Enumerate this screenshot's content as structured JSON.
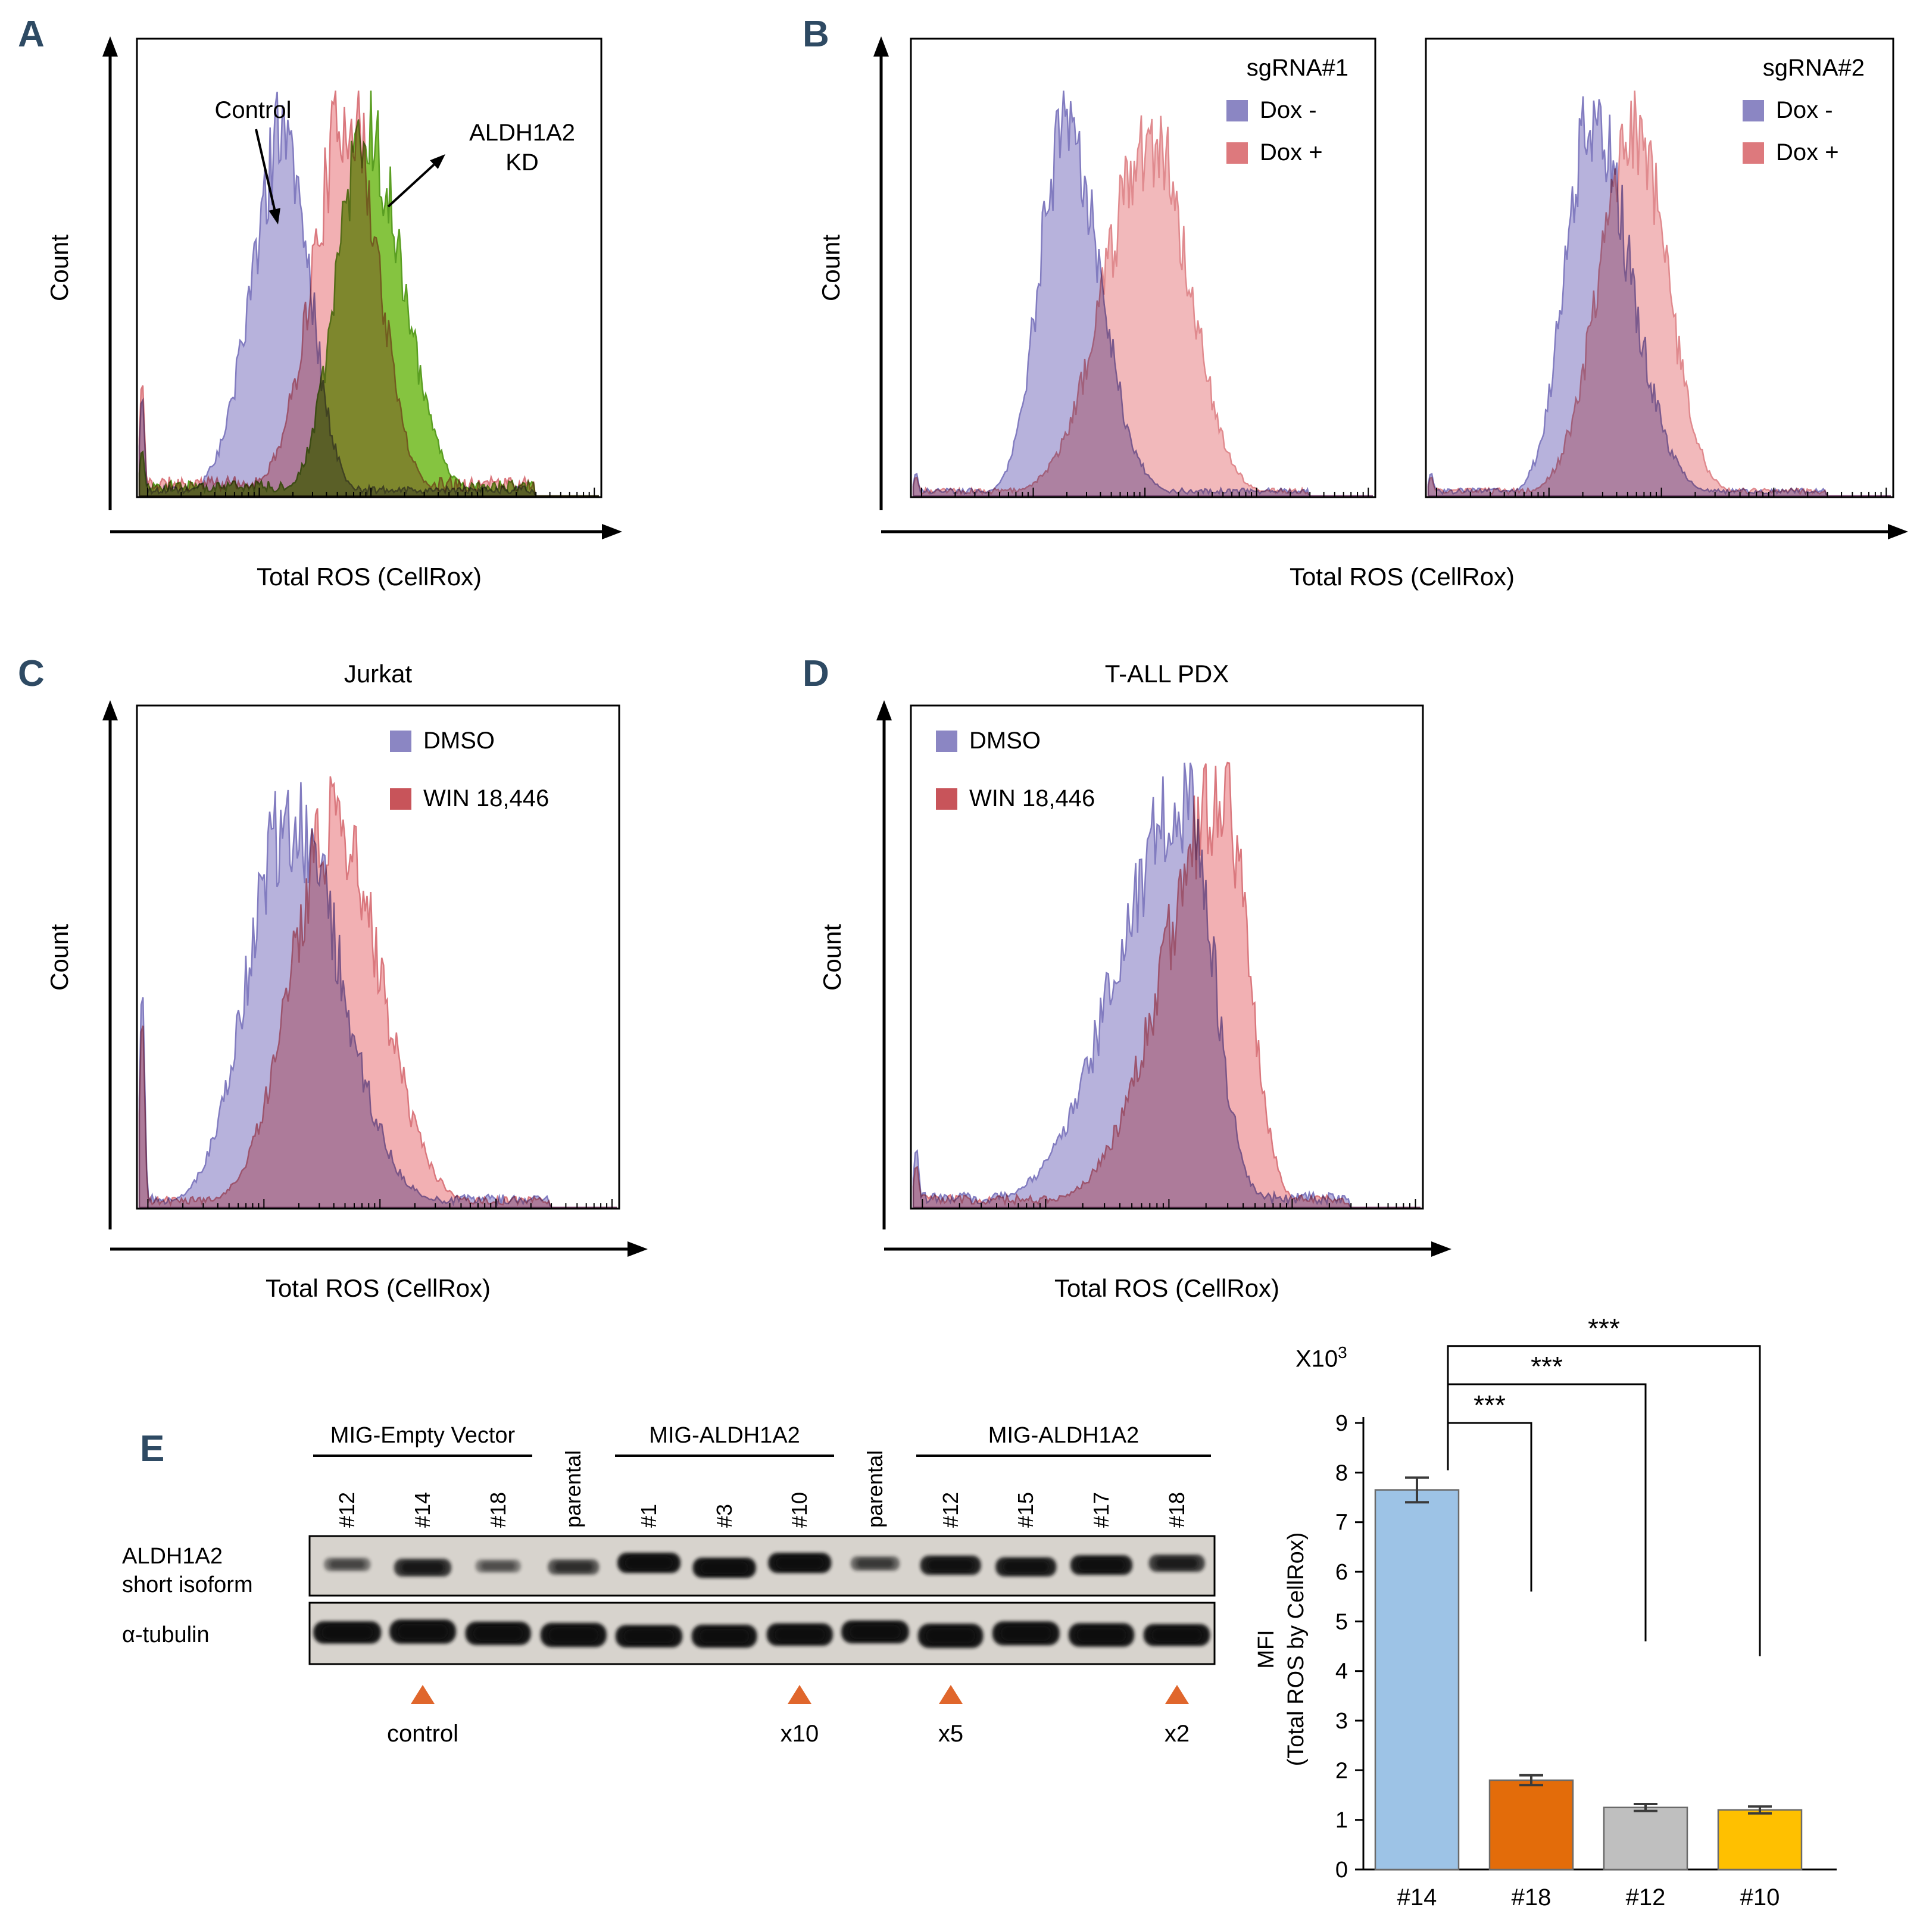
{
  "panels": {
    "A": {
      "letter": "A"
    },
    "B": {
      "letter": "B"
    },
    "C": {
      "letter": "C"
    },
    "D": {
      "letter": "D"
    },
    "E": {
      "letter": "E"
    }
  },
  "letter_color": "#2e4a63",
  "chart_data": [
    {
      "id": "A",
      "type": "area",
      "xlabel": "Total ROS (CellRox)",
      "ylabel": "Count",
      "annotations": [
        {
          "text": "Control"
        },
        {
          "text": "ALDH1A2\nKD"
        }
      ],
      "series": [
        {
          "name": "Control",
          "color": "#b7b2dc",
          "stroke": "#827cc0",
          "peak": 0.315,
          "sigma_left": 0.07,
          "sigma_right": 0.055,
          "height": 0.93,
          "seed": 5,
          "edge_spike": 0.26,
          "floor": 0.025
        },
        {
          "name": "ALDH1A2 KD (CellRox red)",
          "color": "#f2b0b3",
          "stroke": "#da787e",
          "peak": 0.455,
          "sigma_left": 0.075,
          "sigma_right": 0.065,
          "height": 0.99,
          "seed": 11,
          "edge_spike": 0.3,
          "floor": 0.05
        },
        {
          "name": "ALDH1A2 KD (green)",
          "color": "#85c440",
          "stroke": "#5a9e22",
          "peak": 0.49,
          "sigma_left": 0.06,
          "sigma_right": 0.08,
          "height": 0.95,
          "seed": 17,
          "edge_spike": 0.12,
          "floor": 0.04
        }
      ]
    },
    {
      "id": "B-sgRNA1",
      "type": "area",
      "xlabel": "Total ROS (CellRox)",
      "ylabel": "Count",
      "legend_title": "sgRNA#1",
      "legend": [
        {
          "label": "Dox -",
          "color": "#8b86c3"
        },
        {
          "label": "Dox +",
          "color": "#dd797d"
        }
      ],
      "series": [
        {
          "name": "Dox -",
          "color": "#b7b2dc",
          "stroke": "#827cc0",
          "peak": 0.33,
          "sigma_left": 0.055,
          "sigma_right": 0.075,
          "height": 0.95,
          "seed": 21,
          "edge_spike": 0.06,
          "floor": 0.02
        },
        {
          "name": "Dox +",
          "color": "#f2b9bb",
          "stroke": "#e08a8e",
          "peak": 0.52,
          "sigma_left": 0.1,
          "sigma_right": 0.08,
          "height": 0.93,
          "seed": 23,
          "edge_spike": 0.05,
          "floor": 0.02
        }
      ]
    },
    {
      "id": "B-sgRNA2",
      "type": "area",
      "legend_title": "sgRNA#2",
      "legend": [
        {
          "label": "Dox -",
          "color": "#8b86c3"
        },
        {
          "label": "Dox +",
          "color": "#dd797d"
        }
      ],
      "series": [
        {
          "name": "Dox -",
          "color": "#b7b2dc",
          "stroke": "#827cc0",
          "peak": 0.35,
          "sigma_left": 0.055,
          "sigma_right": 0.085,
          "height": 0.97,
          "seed": 31,
          "edge_spike": 0.06,
          "floor": 0.02
        },
        {
          "name": "Dox +",
          "color": "#f2b9bb",
          "stroke": "#e08a8e",
          "peak": 0.445,
          "sigma_left": 0.075,
          "sigma_right": 0.07,
          "height": 0.95,
          "seed": 33,
          "edge_spike": 0.05,
          "floor": 0.02
        }
      ]
    },
    {
      "id": "C",
      "type": "area",
      "title": "Jurkat",
      "xlabel": "Total ROS (CellRox)",
      "ylabel": "Count",
      "legend": [
        {
          "label": "DMSO",
          "color": "#8b86c3"
        },
        {
          "label": "WIN 18,446",
          "color": "#c8545a"
        }
      ],
      "series": [
        {
          "name": "DMSO",
          "color": "#b7b2dc",
          "stroke": "#827cc0",
          "peak": 0.315,
          "sigma_left": 0.085,
          "sigma_right": 0.105,
          "height": 0.92,
          "seed": 41,
          "edge_spike": 0.52,
          "floor": 0.03
        },
        {
          "name": "WIN 18,446",
          "color": "#f2b0b3",
          "stroke": "#da787e",
          "peak": 0.41,
          "sigma_left": 0.09,
          "sigma_right": 0.095,
          "height": 0.9,
          "seed": 43,
          "edge_spike": 0.45,
          "floor": 0.025
        }
      ]
    },
    {
      "id": "D",
      "type": "area",
      "title": "T-ALL PDX",
      "xlabel": "Total ROS (CellRox)",
      "ylabel": "Count",
      "legend": [
        {
          "label": "DMSO",
          "color": "#8b86c3"
        },
        {
          "label": "WIN 18,446",
          "color": "#c8545a"
        }
      ],
      "series": [
        {
          "name": "DMSO",
          "color": "#b7b2dc",
          "stroke": "#827cc0",
          "peak": 0.535,
          "sigma_left": 0.13,
          "sigma_right": 0.055,
          "height": 0.97,
          "seed": 51,
          "edge_spike": 0.14,
          "floor": 0.035
        },
        {
          "name": "WIN 18,446",
          "color": "#f2b0b3",
          "stroke": "#da787e",
          "peak": 0.61,
          "sigma_left": 0.115,
          "sigma_right": 0.05,
          "height": 0.95,
          "seed": 53,
          "edge_spike": 0.1,
          "floor": 0.03
        }
      ]
    },
    {
      "id": "E-bar",
      "type": "bar",
      "categories": [
        "#14",
        "#18",
        "#12",
        "#10"
      ],
      "values": [
        7.65,
        1.8,
        1.25,
        1.2
      ],
      "errors": [
        0.25,
        0.1,
        0.07,
        0.07
      ],
      "bar_colors": [
        "#9dc3e6",
        "#e36c0a",
        "#bfbfbf",
        "#ffc000"
      ],
      "ylim": [
        0,
        9
      ],
      "ytick_step": 1,
      "scale_label": "X10",
      "scale_exponent": "3",
      "ylabel_line1": "MFI",
      "ylabel_line2": "(Total ROS by CellRox)",
      "brackets": [
        {
          "label": "***",
          "from": "#14",
          "to": "#18",
          "line_y": 9.0,
          "left_end_y": 8.05,
          "right_end_y": 5.6
        },
        {
          "label": "***",
          "from": "#14",
          "to": "#12",
          "line_y": 9.78,
          "left_end_y": 8.05,
          "right_end_y": 4.6
        },
        {
          "label": "***",
          "from": "#14",
          "to": "#10",
          "line_y": 10.55,
          "left_end_y": 8.05,
          "right_end_y": 4.3
        }
      ]
    }
  ],
  "blot": {
    "groups": [
      {
        "label": "MIG-Empty Vector",
        "start_lane": 0,
        "end_lane": 2
      },
      {
        "label": "MIG-ALDH1A2",
        "start_lane": 4,
        "end_lane": 6
      },
      {
        "label": "MIG-ALDH1A2",
        "start_lane": 8,
        "end_lane": 11
      }
    ],
    "lane_labels": [
      "#12",
      "#14",
      "#18",
      "parental",
      "#1",
      "#3",
      "#10",
      "parental",
      "#12",
      "#15",
      "#17",
      "#18"
    ],
    "rows": [
      {
        "label_line1": "ALDH1A2",
        "label_line2": "short isoform",
        "band_intensities": [
          0.3,
          0.75,
          0.25,
          0.5,
          1,
          1,
          1,
          0.4,
          0.9,
          0.9,
          0.95,
          0.7
        ]
      },
      {
        "label_line1": "α-tubulin",
        "label_line2": "",
        "band_intensities": [
          1,
          1,
          1,
          1,
          1,
          1,
          1,
          1,
          1,
          1,
          1,
          1
        ]
      }
    ],
    "markers": [
      {
        "lane_index": 1,
        "label": "control"
      },
      {
        "lane_index": 6,
        "label": "x10"
      },
      {
        "lane_index": 8,
        "label": "x5"
      },
      {
        "lane_index": 11,
        "label": "x2"
      }
    ],
    "marker_color": "#e0662c"
  }
}
